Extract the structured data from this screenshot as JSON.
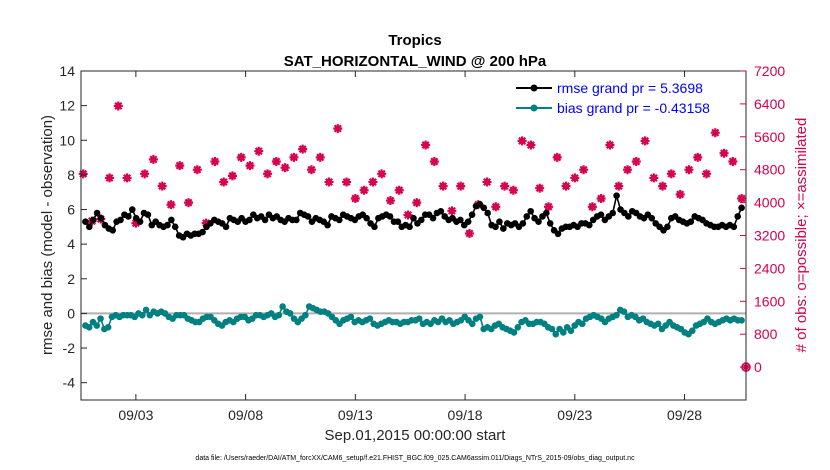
{
  "chart_data": {
    "type": "line",
    "title": "Tropics",
    "subtitle": "SAT_HORIZONTAL_WIND @ 200 hPa",
    "xlabel": "Sep.01,2015 00:00:00 start",
    "ylabel": "rmse and bias (model - observation)",
    "y2label": "# of obs: o=possible; ×=assimilated",
    "footer": "data file: /Users/raeder/DAI/ATM_forcXX/CAM6_setup/f.e21.FHIST_BGC.f09_025.CAM6assim.011/Diags_NTrS_2015-09/obs_diag_output.nc",
    "xlim": [
      0.5,
      30.8
    ],
    "ylim": [
      -5,
      14
    ],
    "y2lim": [
      -800,
      7200
    ],
    "x_ticks": [
      {
        "x": 3,
        "label": "09/03"
      },
      {
        "x": 8,
        "label": "09/08"
      },
      {
        "x": 13,
        "label": "09/13"
      },
      {
        "x": 18,
        "label": "09/18"
      },
      {
        "x": 23,
        "label": "09/23"
      },
      {
        "x": 28,
        "label": "09/28"
      }
    ],
    "y_ticks": [
      "14",
      "12",
      "10",
      "8",
      "6",
      "4",
      "2",
      "0",
      "-2",
      "-4"
    ],
    "y_tick_values": [
      14,
      12,
      10,
      8,
      6,
      4,
      2,
      0,
      -2,
      -4
    ],
    "y2_ticks": [
      "7200",
      "6400",
      "5600",
      "4800",
      "4000",
      "3200",
      "2400",
      "1600",
      "800",
      "0"
    ],
    "y2_tick_values": [
      7200,
      6400,
      5600,
      4800,
      4000,
      3200,
      2400,
      1600,
      800,
      0
    ],
    "legend": {
      "rmse": "rmse grand pr = 5.3698",
      "bias": "bias grand pr = -0.43158"
    },
    "series": [
      {
        "name": "rmse",
        "color": "#000000",
        "values": [
          5.3,
          5.0,
          5.4,
          5.8,
          5.5,
          5.1,
          4.9,
          4.8,
          5.3,
          5.4,
          5.7,
          5.6,
          6.0,
          5.5,
          5.3,
          5.8,
          5.7,
          5.1,
          5.3,
          5.1,
          5.0,
          5.1,
          5.4,
          5.0,
          4.5,
          4.4,
          4.6,
          4.5,
          4.6,
          4.6,
          4.7,
          5.0,
          5.2,
          5.4,
          5.3,
          5.2,
          5.0,
          5.5,
          5.4,
          5.3,
          5.5,
          5.3,
          5.4,
          5.7,
          5.5,
          5.6,
          5.4,
          5.7,
          5.5,
          5.6,
          5.4,
          5.3,
          5.5,
          5.4,
          5.4,
          5.8,
          5.7,
          5.6,
          5.3,
          5.5,
          5.4,
          5.3,
          5.1,
          5.6,
          5.5,
          5.4,
          5.7,
          5.6,
          5.5,
          5.4,
          5.6,
          5.7,
          5.5,
          5.2,
          5.0,
          5.5,
          5.6,
          5.7,
          5.6,
          5.3,
          5.3,
          5.0,
          5.1,
          5.0,
          5.5,
          5.2,
          5.4,
          5.7,
          5.7,
          5.5,
          5.8,
          5.9,
          5.6,
          5.4,
          5.5,
          5.3,
          5.4,
          5.1,
          5.3,
          5.7,
          6.2,
          6.3,
          6.1,
          5.8,
          5.1,
          5.0,
          5.3,
          4.9,
          5.2,
          5.1,
          5.2,
          5.0,
          5.2,
          5.6,
          5.9,
          5.5,
          5.3,
          5.6,
          5.8,
          5.2,
          4.8,
          4.6,
          4.9,
          5.0,
          5.0,
          5.1,
          5.0,
          5.2,
          5.2,
          5.1,
          5.4,
          5.6,
          5.7,
          5.4,
          5.6,
          5.8,
          6.8,
          6.0,
          5.8,
          5.6,
          5.9,
          5.8,
          5.6,
          5.5,
          5.7,
          5.5,
          5.2,
          5.0,
          4.8,
          5.0,
          5.5,
          5.6,
          5.4,
          5.3,
          5.2,
          5.3,
          5.6,
          5.5,
          5.4,
          5.2,
          5.1,
          5.0,
          5.0,
          5.1,
          5.0,
          5.1,
          5.0,
          5.6,
          6.1
        ]
      },
      {
        "name": "bias",
        "color": "#008080",
        "values": [
          -0.7,
          -0.8,
          -0.5,
          -0.7,
          -0.3,
          -0.9,
          -0.8,
          -0.2,
          -0.1,
          -0.2,
          -0.1,
          -0.1,
          -0.1,
          -0.2,
          0.0,
          -0.1,
          0.2,
          -0.1,
          0.1,
          0.0,
          0.1,
          0.0,
          -0.2,
          -0.3,
          -0.1,
          -0.1,
          -0.1,
          -0.3,
          -0.4,
          -0.5,
          -0.5,
          -0.3,
          -0.2,
          -0.2,
          -0.4,
          -0.6,
          -0.7,
          -0.5,
          -0.4,
          -0.5,
          -0.3,
          -0.2,
          -0.2,
          -0.4,
          -0.3,
          -0.1,
          -0.1,
          -0.2,
          -0.1,
          0.0,
          -0.2,
          -0.1,
          0.4,
          0.1,
          0.0,
          -0.3,
          -0.5,
          -0.3,
          -0.1,
          0.4,
          0.3,
          0.2,
          0.1,
          0.1,
          0.0,
          -0.2,
          -0.4,
          -0.6,
          -0.4,
          -0.3,
          -0.2,
          -0.5,
          -0.4,
          -0.5,
          -0.4,
          -0.3,
          -0.6,
          -0.7,
          -0.6,
          -0.5,
          -0.4,
          -0.5,
          -0.5,
          -0.6,
          -0.5,
          -0.5,
          -0.4,
          -0.4,
          -0.3,
          -0.6,
          -0.5,
          -0.6,
          -0.4,
          -0.5,
          -0.3,
          -0.5,
          -0.4,
          -0.6,
          -0.5,
          -0.4,
          -0.2,
          -0.4,
          -0.6,
          -0.3,
          -0.2,
          -0.9,
          -0.8,
          -0.9,
          -0.7,
          -0.6,
          -0.8,
          -0.9,
          -1.0,
          -1.1,
          -0.8,
          -0.5,
          -0.4,
          -0.6,
          -0.6,
          -0.5,
          -0.5,
          -0.6,
          -0.8,
          -0.9,
          -1.2,
          -0.9,
          -1.1,
          -0.8,
          -1.0,
          -0.7,
          -0.5,
          -0.6,
          -0.3,
          -0.2,
          -0.1,
          -0.2,
          -0.3,
          -0.5,
          -0.3,
          -0.2,
          -0.1,
          0.2,
          0.1,
          -0.2,
          -0.1,
          -0.2,
          -0.4,
          -0.3,
          -0.5,
          -0.6,
          -0.7,
          -0.6,
          -0.9,
          -0.7,
          -0.5,
          -0.7,
          -0.8,
          -0.9,
          -1.1,
          -1.2,
          -1.0,
          -0.7,
          -0.6,
          -0.5,
          -0.3,
          -0.5,
          -0.6,
          -0.5,
          -0.4,
          -0.3,
          -0.4,
          -0.3,
          -0.4,
          -0.4
        ]
      }
    ],
    "obs_assimilated": [
      [
        0.6,
        4700
      ],
      [
        1.0,
        3550
      ],
      [
        1.4,
        3600
      ],
      [
        1.8,
        4600
      ],
      [
        2.2,
        6350
      ],
      [
        2.6,
        4600
      ],
      [
        3.0,
        3500
      ],
      [
        3.4,
        4700
      ],
      [
        3.8,
        5050
      ],
      [
        4.2,
        4400
      ],
      [
        4.6,
        3950
      ],
      [
        5.0,
        4900
      ],
      [
        5.4,
        4000
      ],
      [
        5.8,
        4800
      ],
      [
        6.2,
        3500
      ],
      [
        6.6,
        5000
      ],
      [
        7.0,
        4500
      ],
      [
        7.4,
        4650
      ],
      [
        7.8,
        5100
      ],
      [
        8.2,
        4900
      ],
      [
        8.6,
        5250
      ],
      [
        9.0,
        4700
      ],
      [
        9.4,
        5000
      ],
      [
        9.8,
        4850
      ],
      [
        10.2,
        5100
      ],
      [
        10.6,
        5300
      ],
      [
        11.0,
        4800
      ],
      [
        11.4,
        5100
      ],
      [
        11.8,
        4500
      ],
      [
        12.2,
        5800
      ],
      [
        12.6,
        4500
      ],
      [
        13.0,
        4100
      ],
      [
        13.4,
        4300
      ],
      [
        13.8,
        4500
      ],
      [
        14.2,
        4700
      ],
      [
        14.6,
        4050
      ],
      [
        15.0,
        4300
      ],
      [
        15.4,
        3700
      ],
      [
        15.8,
        4000
      ],
      [
        16.2,
        5400
      ],
      [
        16.6,
        5000
      ],
      [
        17.0,
        4400
      ],
      [
        17.4,
        3800
      ],
      [
        17.8,
        4400
      ],
      [
        18.2,
        3250
      ],
      [
        18.6,
        3950
      ],
      [
        19.0,
        4500
      ],
      [
        19.4,
        3900
      ],
      [
        19.8,
        4400
      ],
      [
        20.2,
        4300
      ],
      [
        20.6,
        5500
      ],
      [
        21.0,
        5400
      ],
      [
        21.4,
        4350
      ],
      [
        21.8,
        3900
      ],
      [
        22.2,
        5100
      ],
      [
        22.6,
        4400
      ],
      [
        23.0,
        4600
      ],
      [
        23.4,
        4800
      ],
      [
        23.8,
        3900
      ],
      [
        24.2,
        4100
      ],
      [
        24.6,
        5400
      ],
      [
        25.0,
        4400
      ],
      [
        25.4,
        4800
      ],
      [
        25.8,
        5000
      ],
      [
        26.2,
        5500
      ],
      [
        26.6,
        4600
      ],
      [
        27.0,
        4400
      ],
      [
        27.4,
        4700
      ],
      [
        27.8,
        4200
      ],
      [
        28.2,
        4800
      ],
      [
        28.6,
        5100
      ],
      [
        29.0,
        4700
      ],
      [
        29.4,
        5700
      ],
      [
        29.8,
        5200
      ],
      [
        30.2,
        5000
      ],
      [
        30.6,
        4100
      ]
    ],
    "obs_possible": [
      [
        30.8,
        0
      ]
    ]
  }
}
